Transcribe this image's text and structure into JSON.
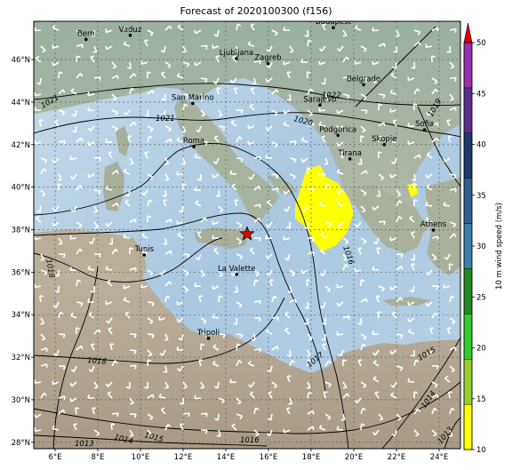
{
  "title": "Forecast of 2020100300 (f156)",
  "colorbar": {
    "label": "10 m wind speed (m/s)",
    "ticks": [
      "10",
      "15",
      "20",
      "25",
      "30",
      "35",
      "40",
      "45",
      "50"
    ],
    "bands": [
      "#ffff00",
      "#9acd32",
      "#32cd32",
      "#228b22",
      "#3a7fa8",
      "#2f5f8f",
      "#1f3a6e",
      "#5b2d8f",
      "#9b30b0"
    ],
    "extend_color": "#e00000"
  },
  "axes": {
    "x_ticks": [
      "6°E",
      "8°E",
      "10°E",
      "12°E",
      "14°E",
      "16°E",
      "18°E",
      "20°E",
      "22°E",
      "24°E"
    ],
    "y_ticks": [
      "46°N",
      "44°N",
      "42°N",
      "40°N",
      "38°N",
      "36°N",
      "34°N",
      "32°N",
      "30°N",
      "28°N"
    ]
  },
  "cities": [
    {
      "name": "Bern",
      "lon": 7.45,
      "lat": 46.95
    },
    {
      "name": "Vaduz",
      "lon": 9.52,
      "lat": 47.14
    },
    {
      "name": "Budapest",
      "lon": 19.04,
      "lat": 47.5
    },
    {
      "name": "Ljubljana",
      "lon": 14.5,
      "lat": 46.05
    },
    {
      "name": "Zagreb",
      "lon": 15.98,
      "lat": 45.81
    },
    {
      "name": "Belgrade",
      "lon": 20.46,
      "lat": 44.82
    },
    {
      "name": "San Marino",
      "lon": 12.45,
      "lat": 43.94
    },
    {
      "name": "Sarajevo",
      "lon": 18.41,
      "lat": 43.86
    },
    {
      "name": "Sofia",
      "lon": 23.32,
      "lat": 42.7
    },
    {
      "name": "Podgorica",
      "lon": 19.26,
      "lat": 42.44
    },
    {
      "name": "Skopje",
      "lon": 21.43,
      "lat": 42.0
    },
    {
      "name": "Roma",
      "lon": 12.5,
      "lat": 41.9
    },
    {
      "name": "Tirana",
      "lon": 19.82,
      "lat": 41.33
    },
    {
      "name": "Athens",
      "lon": 23.73,
      "lat": 37.98
    },
    {
      "name": "Tunis",
      "lon": 10.18,
      "lat": 36.81
    },
    {
      "name": "La Valette",
      "lon": 14.51,
      "lat": 35.9
    },
    {
      "name": "Tripoli",
      "lon": 13.19,
      "lat": 32.89
    }
  ],
  "marker": {
    "name": "storm-center-star",
    "lon": 15.0,
    "lat": 37.8
  },
  "isobar_labels": [
    "1021",
    "1021",
    "1020",
    "1022",
    "1019",
    "1018",
    "1016",
    "1017",
    "1018",
    "1015",
    "1014",
    "1016",
    "1015",
    "1014",
    "1013",
    "1013"
  ]
}
